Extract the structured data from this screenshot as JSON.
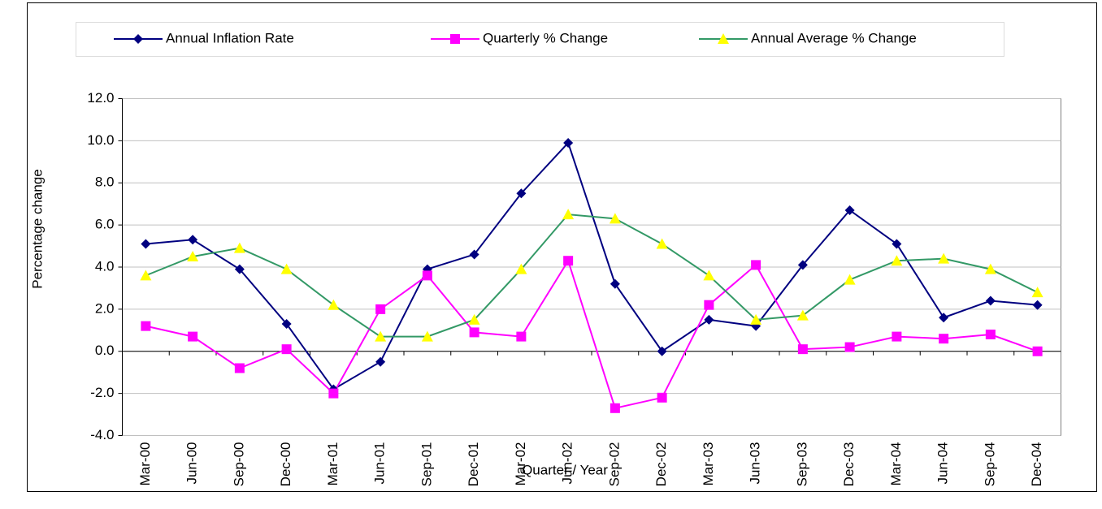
{
  "chart_data": {
    "type": "line",
    "x_label": "Quarter / Year",
    "y_label": "Percentage change",
    "categories": [
      "Mar-00",
      "Jun-00",
      "Sep-00",
      "Dec-00",
      "Mar-01",
      "Jun-01",
      "Sep-01",
      "Dec-01",
      "Mar-02",
      "Jun-02",
      "Sep-02",
      "Dec-02",
      "Mar-03",
      "Jun-03",
      "Sep-03",
      "Dec-03",
      "Mar-04",
      "Jun-04",
      "Sep-04",
      "Dec-04"
    ],
    "series": [
      {
        "name": "Annual Inflation Rate",
        "color": "#000080",
        "marker_color": "#000080",
        "marker": "diamond",
        "values": [
          5.1,
          5.3,
          3.9,
          1.3,
          -1.8,
          -0.5,
          3.9,
          4.6,
          7.5,
          9.9,
          3.2,
          0.0,
          1.5,
          1.2,
          4.1,
          6.7,
          5.1,
          1.6,
          2.4,
          2.2
        ]
      },
      {
        "name": "Quarterly % Change",
        "color": "#ff00ff",
        "marker_color": "#ff00ff",
        "marker": "square",
        "values": [
          1.2,
          0.7,
          -0.8,
          0.1,
          -2.0,
          2.0,
          3.6,
          0.9,
          0.7,
          4.3,
          -2.7,
          -2.2,
          2.2,
          4.1,
          0.1,
          0.2,
          0.7,
          0.6,
          0.8,
          0.0
        ]
      },
      {
        "name": "Annual Average % Change",
        "color": "#339966",
        "marker_color": "#ffff00",
        "marker": "triangle",
        "values": [
          3.6,
          4.5,
          4.9,
          3.9,
          2.2,
          0.7,
          0.7,
          1.5,
          3.9,
          6.5,
          6.3,
          5.1,
          3.6,
          1.5,
          1.7,
          3.4,
          4.3,
          4.4,
          3.9,
          2.8
        ]
      }
    ],
    "ylim": [
      -4,
      12
    ],
    "yticks": [
      {
        "value": -4,
        "label": "-4.0"
      },
      {
        "value": -2,
        "label": "-2.0"
      },
      {
        "value": 0,
        "label": "0.0"
      },
      {
        "value": 2,
        "label": "2.0"
      },
      {
        "value": 4,
        "label": "4.0"
      },
      {
        "value": 6,
        "label": "6.0"
      },
      {
        "value": 8,
        "label": "8.0"
      },
      {
        "value": 10,
        "label": "10.0"
      },
      {
        "value": 12,
        "label": "12.0"
      }
    ],
    "grid": true,
    "legend": "top"
  }
}
